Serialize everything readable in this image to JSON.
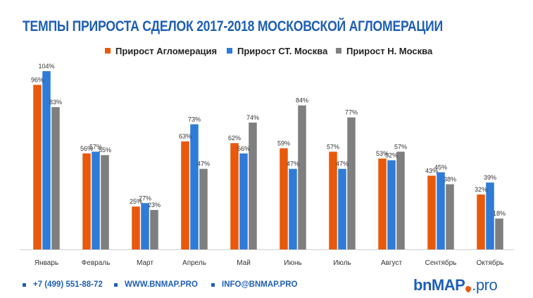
{
  "chart_data": {
    "type": "bar",
    "title": "ТЕМПЫ ПРИРОСТА СДЕЛОК 2017-2018 МОСКОВСКОЙ АГЛОМЕРАЦИИ",
    "categories": [
      "Январь",
      "Февраль",
      "Март",
      "Апрель",
      "Май",
      "Июнь",
      "Июль",
      "Август",
      "Сентябрь",
      "Октябрь"
    ],
    "series": [
      {
        "name": "Прирост Агломерация",
        "color": "#e8590c",
        "values": [
          96,
          56,
          25,
          63,
          62,
          59,
          57,
          53,
          43,
          32
        ]
      },
      {
        "name": "Прирост СТ. Москва",
        "color": "#2f7bd8",
        "values": [
          104,
          57,
          27,
          73,
          56,
          47,
          47,
          52,
          45,
          39
        ]
      },
      {
        "name": "Прирост Н. Москва",
        "color": "#7f7f7f",
        "values": [
          83,
          55,
          23,
          47,
          74,
          84,
          77,
          57,
          38,
          18
        ]
      }
    ],
    "value_suffix": "%",
    "ylim": [
      0,
      104
    ],
    "grid": false,
    "legend_position": "top"
  },
  "footer": {
    "phone": "+7 (499) 551-88-72",
    "website": "WWW.BNMAP.PRO",
    "email": "INFO@BNMAP.PRO",
    "brand_prefix": "bn",
    "brand_main": "MAP",
    "brand_suffix": ".pro"
  }
}
